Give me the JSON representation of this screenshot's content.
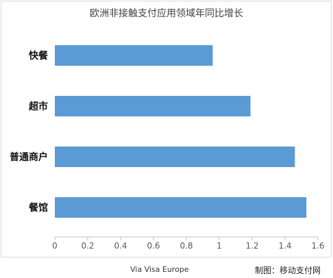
{
  "chart_data": {
    "type": "bar",
    "orientation": "horizontal",
    "title": "欧洲非接触支付应用领域年同比增长",
    "categories": [
      "快餐",
      "超市",
      "普通商户",
      "餐馆"
    ],
    "values": [
      0.96,
      1.19,
      1.46,
      1.53
    ],
    "xlim": [
      0,
      1.6
    ],
    "xticks": [
      "0",
      "0.2",
      "0.4",
      "0.6",
      "0.8",
      "1",
      "1.2",
      "1.4",
      "1.6"
    ],
    "grid": false,
    "bar_color": "#5b9bd5",
    "xlabel": "",
    "ylabel": ""
  },
  "footer": {
    "source": "Via Visa Europe",
    "credit": "制图：移动支付网"
  }
}
